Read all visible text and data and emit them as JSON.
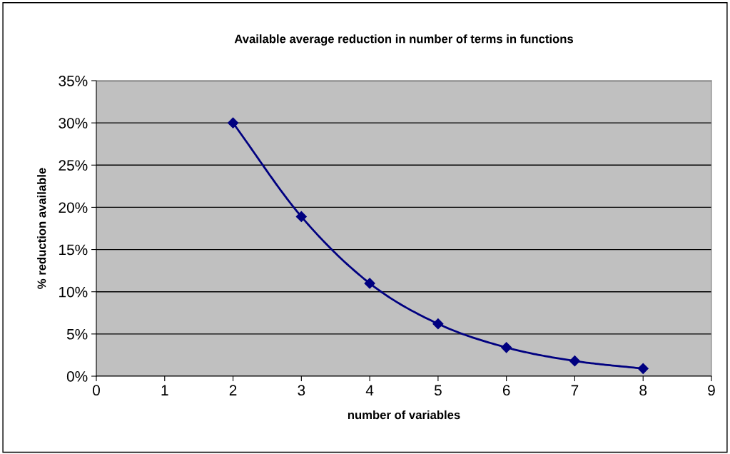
{
  "chart_data": {
    "type": "line",
    "title": "Available average reduction in number of terms in functions",
    "xlabel": "number of variables",
    "ylabel": "% reduction available",
    "x": [
      2,
      3,
      4,
      5,
      6,
      7,
      8
    ],
    "series": [
      {
        "color": "#000080",
        "values": [
          30,
          18.9,
          11,
          6.2,
          3.4,
          1.8,
          0.9
        ]
      }
    ],
    "marker": "diamond",
    "line_style": "solid",
    "grid": "y",
    "xlim": [
      0,
      9
    ],
    "xticks": [
      0,
      1,
      2,
      3,
      4,
      5,
      6,
      7,
      8,
      9
    ],
    "ylim": [
      0,
      35
    ],
    "yticks": [
      {
        "value": 0,
        "label": "0%"
      },
      {
        "value": 5,
        "label": "5%"
      },
      {
        "value": 10,
        "label": "10%"
      },
      {
        "value": 15,
        "label": "15%"
      },
      {
        "value": 20,
        "label": "20%"
      },
      {
        "value": 25,
        "label": "25%"
      },
      {
        "value": 30,
        "label": "30%"
      },
      {
        "value": 35,
        "label": "35%"
      }
    ]
  }
}
